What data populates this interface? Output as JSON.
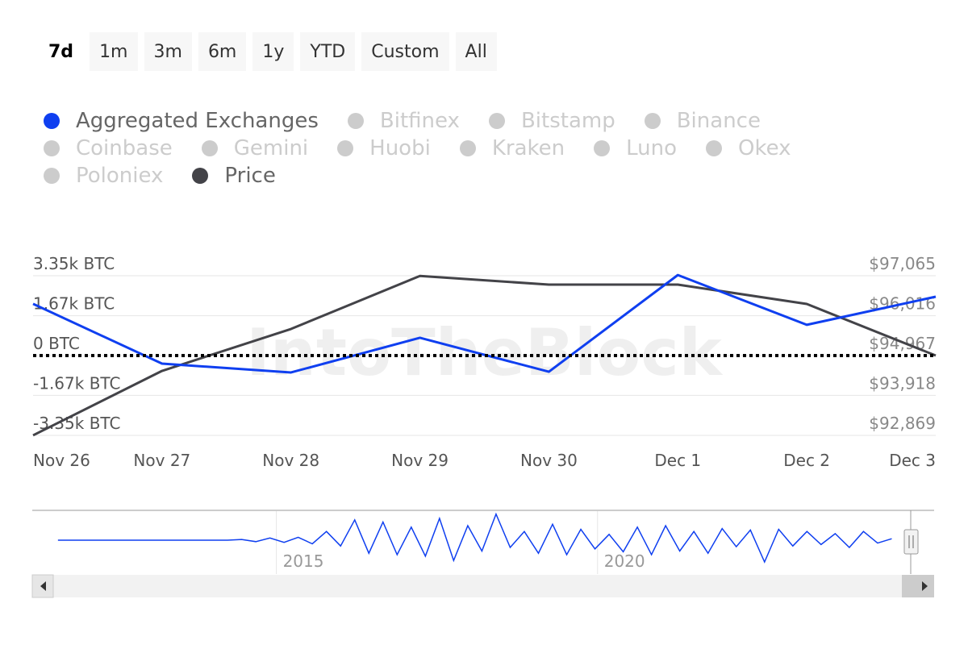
{
  "chart_data": {
    "type": "line",
    "range_buttons": [
      "7d",
      "1m",
      "3m",
      "6m",
      "1y",
      "YTD",
      "Custom",
      "All"
    ],
    "selected_range": "7d",
    "watermark": "IntoTheBlock",
    "categories": [
      "Nov 26",
      "Nov 27",
      "Nov 28",
      "Nov 29",
      "Nov 30",
      "Dec 1",
      "Dec 2",
      "Dec 3"
    ],
    "series": [
      {
        "name": "Aggregated Exchanges",
        "color": "#0f3ff0",
        "values": [
          2170,
          -340,
          -710,
          745,
          -680,
          3380,
          1290,
          2470
        ]
      },
      {
        "name": "Price",
        "color": "#434348",
        "axis": "y2",
        "values": [
          92870,
          94564,
          95666,
          97060,
          96832,
          96832,
          96323,
          94967
        ]
      }
    ],
    "hidden_series": [
      {
        "name": "Bitfinex",
        "color": "#cccccc"
      },
      {
        "name": "Bitstamp",
        "color": "#cccccc"
      },
      {
        "name": "Binance",
        "color": "#cccccc"
      },
      {
        "name": "Coinbase",
        "color": "#cccccc"
      },
      {
        "name": "Gemini",
        "color": "#cccccc"
      },
      {
        "name": "Huobi",
        "color": "#cccccc"
      },
      {
        "name": "Kraken",
        "color": "#cccccc"
      },
      {
        "name": "Luno",
        "color": "#cccccc"
      },
      {
        "name": "Okex",
        "color": "#cccccc"
      },
      {
        "name": "Poloniex",
        "color": "#cccccc"
      }
    ],
    "ylim": [
      -3350,
      3350
    ],
    "yticks": [
      {
        "value": 3350,
        "label": "3.35k BTC"
      },
      {
        "value": 1670,
        "label": "1.67k BTC"
      },
      {
        "value": 0,
        "label": "0 BTC"
      },
      {
        "value": -1670,
        "label": "-1.67k BTC"
      },
      {
        "value": -3350,
        "label": "-3.35k BTC"
      }
    ],
    "y2lim": [
      92869,
      97065
    ],
    "y2ticks": [
      {
        "value": 97065,
        "label": "$97,065"
      },
      {
        "value": 96016,
        "label": "$96,016"
      },
      {
        "value": 94967,
        "label": "$94,967"
      },
      {
        "value": 93918,
        "label": "$93,918"
      },
      {
        "value": 92869,
        "label": "$92,869"
      }
    ],
    "grid": true,
    "zero_line": true,
    "navigator": {
      "color": "#0f3ff0",
      "xlim": [
        2011.2,
        2025.24
      ],
      "xticks": [
        2015,
        2020
      ],
      "ylim": [
        -4000,
        4000
      ],
      "x": [
        2011.6,
        2011.82,
        2012.04,
        2012.26,
        2012.48,
        2012.7,
        2012.92,
        2013.14,
        2013.36,
        2013.58,
        2013.8,
        2014.02,
        2014.24,
        2014.46,
        2014.68,
        2014.9,
        2015.12,
        2015.34,
        2015.56,
        2015.78,
        2016,
        2016.22,
        2016.44,
        2016.66,
        2016.88,
        2017.1,
        2017.32,
        2017.54,
        2017.76,
        2017.98,
        2018.2,
        2018.42,
        2018.64,
        2018.86,
        2019.08,
        2019.3,
        2019.52,
        2019.74,
        2019.96,
        2020.18,
        2020.4,
        2020.62,
        2020.84,
        2021.06,
        2021.28,
        2021.5,
        2021.72,
        2021.94,
        2022.16,
        2022.38,
        2022.6,
        2022.82,
        2023.04,
        2023.26,
        2023.48,
        2023.7,
        2023.92,
        2024.14,
        2024.36,
        2024.58
      ],
      "values": [
        0,
        0,
        0,
        0,
        0,
        0,
        0,
        0,
        0,
        0,
        0,
        0,
        0,
        100,
        -200,
        300,
        -300,
        400,
        -500,
        1200,
        -800,
        2800,
        -1800,
        2500,
        -2000,
        1800,
        -2200,
        3000,
        -2800,
        2000,
        -1500,
        3600,
        -1000,
        1200,
        -1800,
        2200,
        -2000,
        1500,
        -1200,
        800,
        -1600,
        1800,
        -2000,
        2000,
        -1500,
        1200,
        -1800,
        1600,
        -900,
        1400,
        -3000,
        1500,
        -800,
        1200,
        -600,
        900,
        -1000,
        1200,
        -400,
        200
      ]
    }
  }
}
